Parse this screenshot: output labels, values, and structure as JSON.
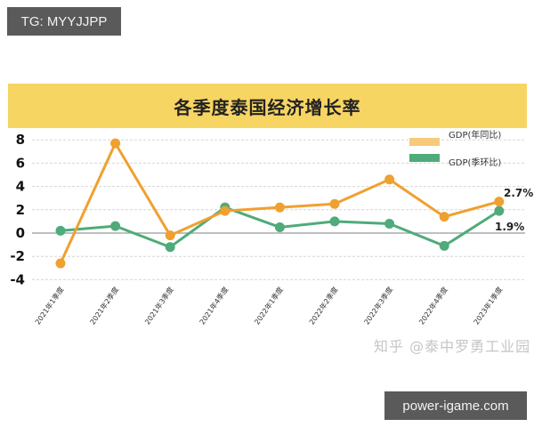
{
  "overlay": {
    "top_tag": "TG: MYYJJPP",
    "bottom_tag": "power-igame.com",
    "watermark": "知乎 @泰中罗勇工业园"
  },
  "colors": {
    "title_band": "#f7d563",
    "yoy_line": "#f0a030",
    "yoy_legend": "#f7c97a",
    "qoq_line": "#4fab7a"
  },
  "chart_data": {
    "type": "line",
    "title": "各季度泰国经济增长率",
    "xlabel": "",
    "ylabel": "",
    "ylim": [
      -4,
      8
    ],
    "yticks": [
      8,
      6,
      4,
      2,
      0,
      -2,
      -4
    ],
    "grid": true,
    "legend_position": "top-right",
    "categories": [
      "2021年1季度",
      "2021年2季度",
      "2021年3季度",
      "2021年4季度",
      "2022年1季度",
      "2022年2季度",
      "2022年3季度",
      "2022年4季度",
      "2023年1季度"
    ],
    "series": [
      {
        "name": "GDP(年同比)",
        "values": [
          -2.6,
          7.7,
          -0.2,
          1.9,
          2.2,
          2.5,
          4.6,
          1.4,
          2.7
        ]
      },
      {
        "name": "GDP(季环比)",
        "values": [
          0.2,
          0.6,
          -1.2,
          2.2,
          0.5,
          1.0,
          0.8,
          -1.1,
          1.9
        ]
      }
    ],
    "annotations": [
      {
        "series": "GDP(年同比)",
        "point": 8,
        "text": "2.7%"
      },
      {
        "series": "GDP(季环比)",
        "point": 8,
        "text": "1.9%"
      }
    ]
  }
}
